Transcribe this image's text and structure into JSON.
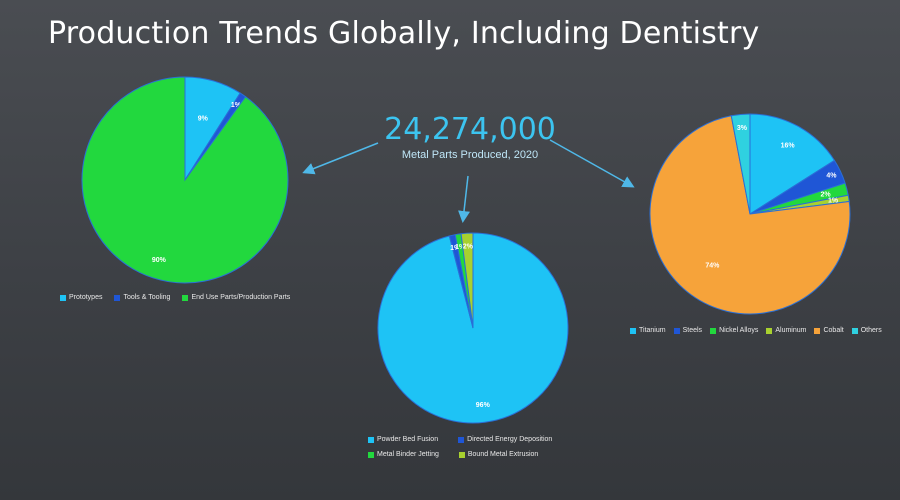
{
  "title": "Production Trends Globally, Including Dentistry",
  "headline": {
    "value": "24,274,000",
    "subtitle": "Metal Parts Produced, 2020"
  },
  "chart_data": [
    {
      "type": "pie",
      "slices": [
        {
          "label": "Prototypes",
          "value": 9,
          "value_label": "9%",
          "color": "#1ec3f5"
        },
        {
          "label": "Tools & Tooling",
          "value": 1,
          "value_label": "1%",
          "color": "#1f56d6"
        },
        {
          "label": "End Use Parts/Production Parts",
          "value": 90,
          "value_label": "90%",
          "color": "#22d83e"
        }
      ],
      "legend_position": "bottom"
    },
    {
      "type": "pie",
      "slices": [
        {
          "label": "Powder Bed Fusion",
          "value": 96,
          "value_label": "96%",
          "color": "#1ec3f5"
        },
        {
          "label": "Directed Energy Deposition",
          "value": 1,
          "value_label": "1%",
          "color": "#1f56d6"
        },
        {
          "label": "Metal Binder Jetting",
          "value": 1,
          "value_label": "1%",
          "color": "#22d83e"
        },
        {
          "label": "Bound Metal Extrusion",
          "value": 2,
          "value_label": "2%",
          "color": "#a8d12f"
        }
      ],
      "legend_position": "bottom"
    },
    {
      "type": "pie",
      "slices": [
        {
          "label": "Titanium",
          "value": 16,
          "value_label": "16%",
          "color": "#1ec3f5"
        },
        {
          "label": "Steels",
          "value": 4,
          "value_label": "4%",
          "color": "#1f56d6"
        },
        {
          "label": "Nickel Alloys",
          "value": 2,
          "value_label": "2%",
          "color": "#22d83e"
        },
        {
          "label": "Aluminum",
          "value": 1,
          "value_label": "1%",
          "color": "#a8d12f"
        },
        {
          "label": "Cobalt",
          "value": 74,
          "value_label": "74%",
          "color": "#f6a33a"
        },
        {
          "label": "Others",
          "value": 3,
          "value_label": "3%",
          "color": "#2fd1e0"
        }
      ],
      "legend_position": "bottom"
    }
  ]
}
